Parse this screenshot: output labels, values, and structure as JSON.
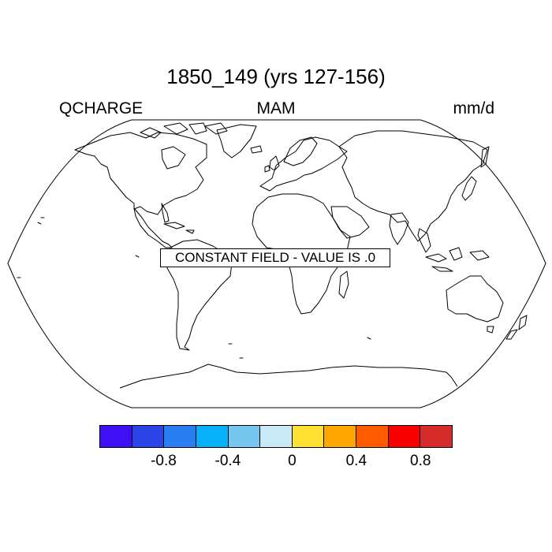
{
  "title": "1850_149 (yrs 127-156)",
  "left_label": "QCHARGE",
  "center_label": "MAM",
  "right_label": "mm/d",
  "constant_field_text": "CONSTANT FIELD - VALUE IS .0",
  "colorbar": {
    "colors": [
      "#3f10f3",
      "#2b44e6",
      "#2a7ff0",
      "#08b0f9",
      "#76c7ef",
      "#c9e8f8",
      "#ffe133",
      "#ffa600",
      "#ff5c00",
      "#f80000",
      "#d52b2b"
    ],
    "labels": [
      "-0.8",
      "-0.4",
      "0",
      "0.4",
      "0.8"
    ]
  }
}
